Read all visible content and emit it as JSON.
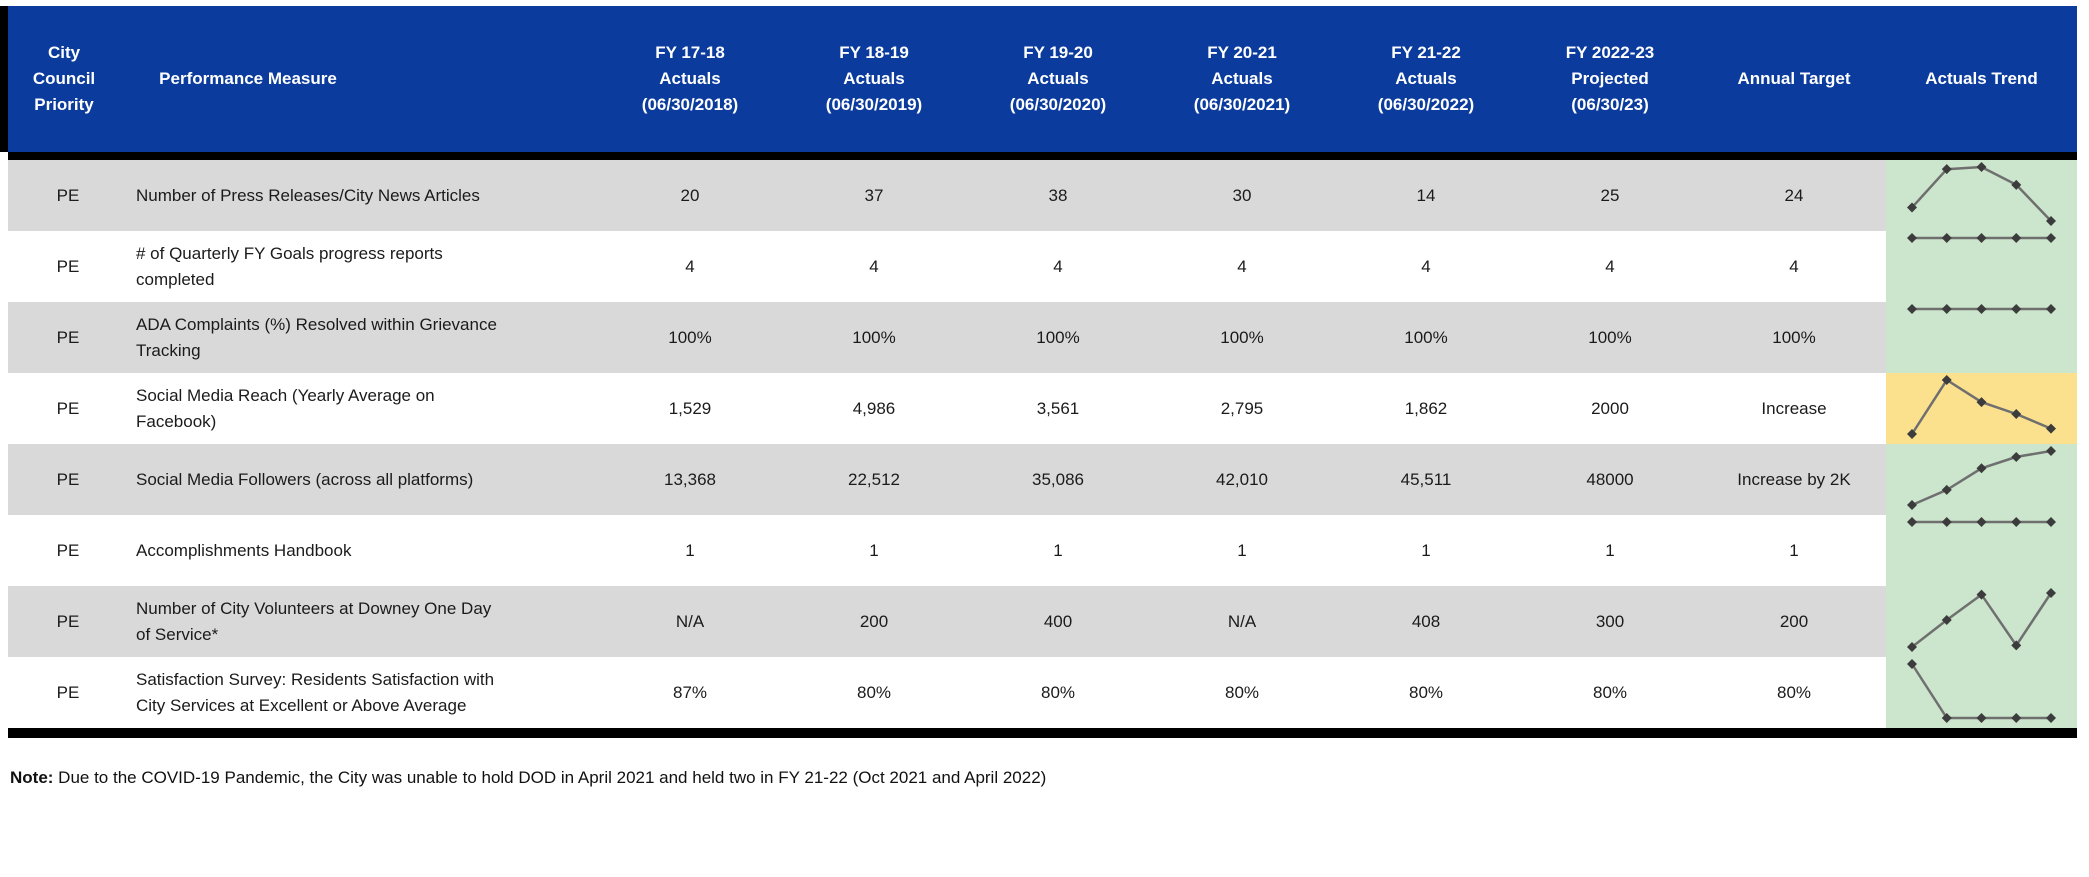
{
  "table": {
    "header": {
      "priority": "City\nCouncil\nPriority",
      "measure": "Performance Measure",
      "columns": [
        "FY 17-18\nActuals\n(06/30/2018)",
        "FY 18-19\nActuals\n(06/30/2019)",
        "FY 19-20\nActuals\n(06/30/2020)",
        "FY 20-21\nActuals\n(06/30/2021)",
        "FY 21-22\nActuals\n(06/30/2022)",
        "FY 2022-23\nProjected\n(06/30/23)",
        "Annual Target",
        "Actuals Trend"
      ]
    },
    "rows": [
      {
        "priority": "PE",
        "measure": "Number of Press Releases/City News Articles",
        "values": [
          "20",
          "37",
          "38",
          "30",
          "14",
          "25",
          "24"
        ],
        "trend": {
          "bg": "#cbe6cc",
          "points": [
            0.25,
            0.96,
            1,
            0.67,
            0
          ]
        }
      },
      {
        "priority": "PE",
        "measure": "# of Quarterly FY Goals progress reports\ncompleted",
        "values": [
          "4",
          "4",
          "4",
          "4",
          "4",
          "4",
          "4"
        ],
        "trend": {
          "bg": "#cbe6cc",
          "points": [
            1,
            1,
            1,
            1,
            1
          ]
        }
      },
      {
        "priority": "PE",
        "measure": "ADA Complaints (%) Resolved within Grievance\nTracking",
        "values": [
          "100%",
          "100%",
          "100%",
          "100%",
          "100%",
          "100%",
          "100%"
        ],
        "trend": {
          "bg": "#cbe6cc",
          "points": [
            1,
            1,
            1,
            1,
            1
          ]
        }
      },
      {
        "priority": "PE",
        "measure": "Social Media Reach (Yearly Average on\nFacebook)",
        "values": [
          "1,529",
          "4,986",
          "3,561",
          "2,795",
          "1,862",
          "2000",
          "Increase"
        ],
        "trend": {
          "bg": "#fbe08d",
          "points": [
            0,
            1,
            0.59,
            0.37,
            0.1
          ]
        }
      },
      {
        "priority": "PE",
        "measure": "Social Media Followers  (across all platforms)",
        "values": [
          "13,368",
          "22,512",
          "35,086",
          "42,010",
          "45,511",
          "48000",
          "Increase by 2K"
        ],
        "trend": {
          "bg": "#cbe6cc",
          "points": [
            0,
            0.28,
            0.68,
            0.89,
            1
          ]
        }
      },
      {
        "priority": "PE",
        "measure": "Accomplishments Handbook",
        "values": [
          "1",
          "1",
          "1",
          "1",
          "1",
          "1",
          "1"
        ],
        "trend": {
          "bg": "#cbe6cc",
          "points": [
            1,
            1,
            1,
            1,
            1
          ]
        }
      },
      {
        "priority": "PE",
        "measure": "Number of City Volunteers at Downey One Day\nof Service*",
        "values": [
          "N/A",
          "200",
          "400",
          "N/A",
          "408",
          "300",
          "200"
        ],
        "trend": {
          "bg": "#cbe6cc",
          "points": [
            0,
            0.5,
            0.97,
            0.03,
            1
          ]
        }
      },
      {
        "priority": "PE",
        "measure": "Satisfaction Survey: Residents Satisfaction with\nCity Services at Excellent or Above Average",
        "values": [
          "87%",
          "80%",
          "80%",
          "80%",
          "80%",
          "80%",
          "80%"
        ],
        "trend": {
          "bg": "#cbe6cc",
          "points": [
            1,
            0,
            0,
            0,
            0
          ]
        }
      }
    ]
  },
  "chart_style": {
    "line_color": "#6f6f6f",
    "marker_color": "#3c3c3c",
    "header_bg": "#0b3b9c",
    "row_alt_bg": "#d9d9d9",
    "trend_green_bg": "#cbe6cc",
    "trend_yellow_bg": "#fbe08d"
  },
  "note": {
    "label": "Note:",
    "text": " Due to the COVID-19 Pandemic, the City was unable to hold DOD in April 2021 and held two in FY 21-22 (Oct 2021 and April 2022)"
  }
}
